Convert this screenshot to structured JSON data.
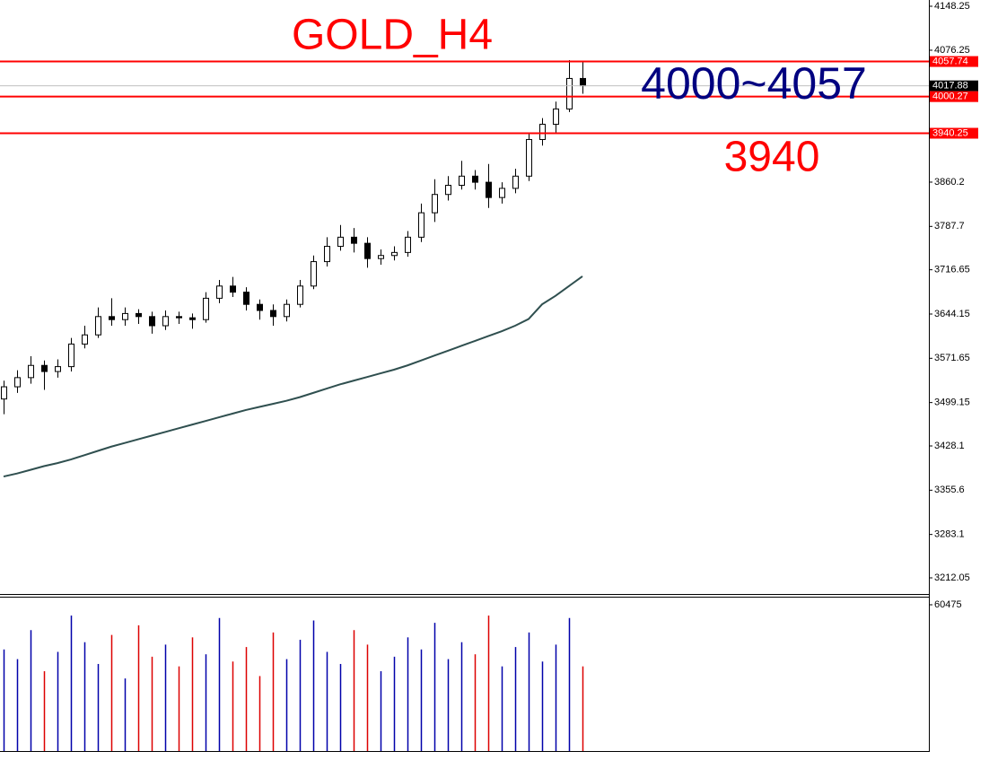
{
  "chart_data": {
    "type": "candlestick",
    "ylim": [
      3185.6,
      4158.5
    ],
    "yticks": [
      4148.25,
      4076.25,
      3860.2,
      3787.7,
      3716.65,
      3644.15,
      3571.65,
      3499.15,
      3428.1,
      3355.6,
      3283.1,
      3212.05
    ],
    "up_color": "#ffffff",
    "down_color": "#000000",
    "wick_color": "#000000",
    "open": [
      3505,
      3525,
      3540,
      3560,
      3550,
      3558,
      3595,
      3610,
      3640,
      3635,
      3645,
      3640,
      3625,
      3640,
      3638,
      3635,
      3670,
      3690,
      3680,
      3660,
      3650,
      3640,
      3660,
      3690,
      3730,
      3755,
      3770,
      3760,
      3735,
      3740,
      3745,
      3770,
      3810,
      3840,
      3855,
      3870,
      3860,
      3835,
      3850,
      3870,
      3930,
      3955,
      3980,
      4030
    ],
    "high": [
      3535,
      3552,
      3575,
      3568,
      3570,
      3605,
      3625,
      3655,
      3670,
      3655,
      3652,
      3648,
      3650,
      3648,
      3645,
      3680,
      3700,
      3705,
      3688,
      3668,
      3660,
      3668,
      3700,
      3740,
      3770,
      3790,
      3785,
      3770,
      3750,
      3755,
      3780,
      3825,
      3865,
      3870,
      3895,
      3880,
      3890,
      3860,
      3882,
      3940,
      3965,
      3992,
      4060,
      4058
    ],
    "low": [
      3480,
      3515,
      3530,
      3520,
      3540,
      3550,
      3588,
      3605,
      3625,
      3625,
      3628,
      3612,
      3618,
      3628,
      3620,
      3630,
      3662,
      3672,
      3650,
      3635,
      3625,
      3632,
      3655,
      3685,
      3722,
      3748,
      3745,
      3720,
      3725,
      3732,
      3738,
      3762,
      3795,
      3830,
      3848,
      3848,
      3818,
      3825,
      3842,
      3862,
      3920,
      3940,
      3975,
      4005
    ],
    "close": [
      3525,
      3540,
      3560,
      3550,
      3558,
      3595,
      3610,
      3640,
      3635,
      3645,
      3640,
      3625,
      3640,
      3638,
      3635,
      3670,
      3690,
      3680,
      3660,
      3650,
      3640,
      3660,
      3690,
      3730,
      3755,
      3770,
      3760,
      3735,
      3740,
      3745,
      3770,
      3810,
      3840,
      3855,
      3870,
      3860,
      3835,
      3850,
      3870,
      3930,
      3955,
      3980,
      4030,
      4018
    ],
    "moving_average": {
      "color": "#2f4f4f",
      "values": [
        3378,
        3383,
        3389,
        3395,
        3400,
        3406,
        3413,
        3420,
        3427,
        3433,
        3439,
        3445,
        3451,
        3457,
        3463,
        3469,
        3475,
        3481,
        3487,
        3492,
        3497,
        3502,
        3508,
        3515,
        3522,
        3529,
        3535,
        3541,
        3547,
        3553,
        3560,
        3568,
        3576,
        3584,
        3592,
        3600,
        3608,
        3616,
        3625,
        3636,
        3660,
        3674,
        3690,
        3706
      ]
    },
    "levels": [
      {
        "value": 4057.74,
        "color": "#ff0000"
      },
      {
        "value": 4000.27,
        "color": "#ff0000"
      },
      {
        "value": 3940.25,
        "color": "#ff0000"
      }
    ],
    "current_price": {
      "value": 4017.88,
      "color": "#000000"
    },
    "annotations": [
      {
        "text": "GOLD_H4",
        "color": "#ff0000"
      },
      {
        "text": "4000~4057",
        "color": "#000080"
      },
      {
        "text": "3940",
        "color": "#ff0000"
      }
    ],
    "volume": {
      "ylim": [
        0,
        60475
      ],
      "yticks": [
        60475
      ],
      "up_color": "#0000aa",
      "down_color": "#dd0000",
      "values": [
        42000,
        38000,
        50000,
        33000,
        41000,
        56000,
        45000,
        36000,
        48000,
        30000,
        52000,
        39000,
        44000,
        35000,
        47000,
        40000,
        55000,
        37000,
        43000,
        31000,
        49000,
        38000,
        46000,
        54000,
        41000,
        36000,
        50000,
        44000,
        33000,
        39000,
        47000,
        42000,
        53000,
        38000,
        45000,
        40000,
        56000,
        35000,
        43000,
        49000,
        37000,
        44000,
        55000,
        35000
      ]
    }
  }
}
